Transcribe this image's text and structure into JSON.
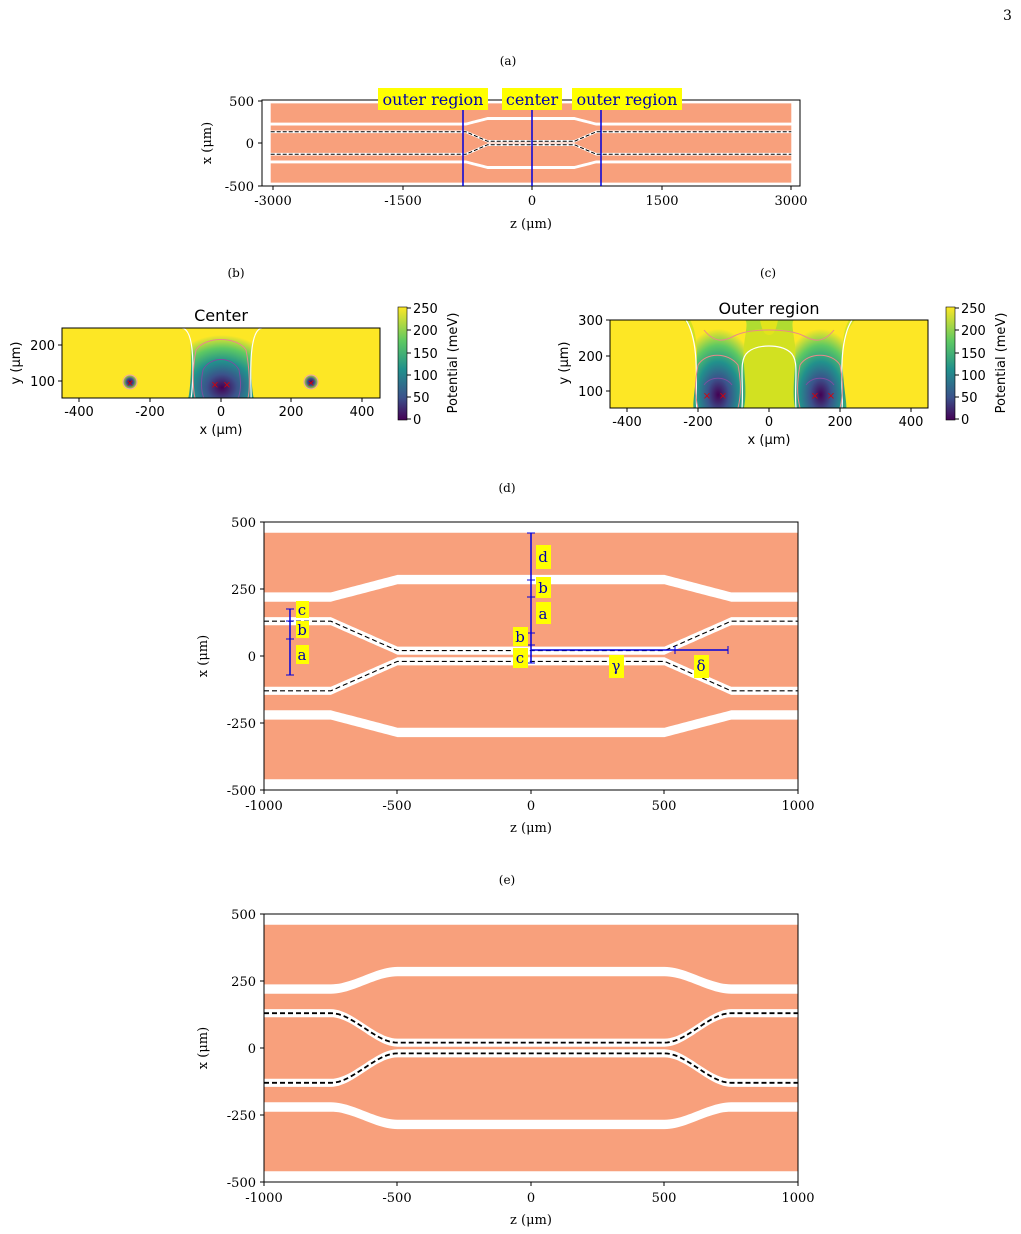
{
  "page": {
    "number": "3"
  },
  "colors": {
    "electrode": "#F8A07C",
    "gap": "#FFFFFF",
    "guide_line": "#0000DD",
    "label_bg": "#FFFF00",
    "label_text": "#0000AA",
    "potential_high": "#FDE725",
    "potential_low": "#440154",
    "ion_marker": "#DD0000"
  },
  "chart_data": [
    {
      "panel": "(a)",
      "type": "other",
      "description_source": "electrode layout",
      "xlabel": "z (μm)",
      "ylabel": "x (μm)",
      "xlim": [
        -3000,
        3000
      ],
      "ylim": [
        -500,
        500
      ],
      "xticks": [
        "-3000",
        "-1500",
        "0",
        "1500",
        "3000"
      ],
      "yticks": [
        "500",
        "0",
        "-500"
      ],
      "region_lines_z": [
        -800,
        0,
        800
      ],
      "region_labels": [
        "outer region",
        "center",
        "outer region"
      ]
    },
    {
      "panel": "(b)",
      "type": "heatmap",
      "title": "Center",
      "xlabel": "x (μm)",
      "ylabel": "y (μm)",
      "xlim": [
        -450,
        450
      ],
      "ylim": [
        50,
        250
      ],
      "xticks": [
        "-400",
        "-200",
        "0",
        "200",
        "400"
      ],
      "yticks": [
        "200",
        "100"
      ],
      "colorbar_label": "Potential (meV)",
      "colorbar_ticks": [
        "250",
        "200",
        "150",
        "100",
        "50",
        "0"
      ],
      "colorbar_range": [
        0,
        250
      ],
      "well_center_x": 0,
      "ion_positions_x": [
        -18,
        18
      ],
      "ion_y": 95,
      "side_spots_x": [
        -255,
        255
      ]
    },
    {
      "panel": "(c)",
      "type": "heatmap",
      "title": "Outer region",
      "xlabel": "x (μm)",
      "ylabel": "y (μm)",
      "xlim": [
        -450,
        450
      ],
      "ylim": [
        70,
        300
      ],
      "xticks": [
        "-400",
        "-200",
        "0",
        "200",
        "400"
      ],
      "yticks": [
        "300",
        "200",
        "100"
      ],
      "colorbar_label": "Potential (meV)",
      "colorbar_ticks": [
        "250",
        "200",
        "150",
        "100",
        "50",
        "0"
      ],
      "colorbar_range": [
        0,
        250
      ],
      "well_centers_x": [
        -150,
        150
      ],
      "ion_positions_x": [
        -175,
        -125,
        125,
        175
      ],
      "ion_y": 92
    },
    {
      "panel": "(d)",
      "type": "other",
      "xlabel": "z (μm)",
      "ylabel": "x (μm)",
      "xlim": [
        -1000,
        1000
      ],
      "ylim": [
        -500,
        500
      ],
      "xticks": [
        "-1000",
        "-500",
        "0",
        "500",
        "1000"
      ],
      "yticks": [
        "500",
        "250",
        "0",
        "-250",
        "-500"
      ],
      "dimension_labels": [
        "d",
        "b",
        "a",
        "b",
        "c",
        "c",
        "b",
        "a",
        "γ",
        "δ"
      ]
    },
    {
      "panel": "(e)",
      "type": "other",
      "xlabel": "z (μm)",
      "ylabel": "x (μm)",
      "xlim": [
        -1000,
        1000
      ],
      "ylim": [
        -500,
        500
      ],
      "xticks": [
        "-1000",
        "-500",
        "0",
        "500",
        "1000"
      ],
      "yticks": [
        "500",
        "250",
        "0",
        "-250",
        "-500"
      ]
    }
  ]
}
